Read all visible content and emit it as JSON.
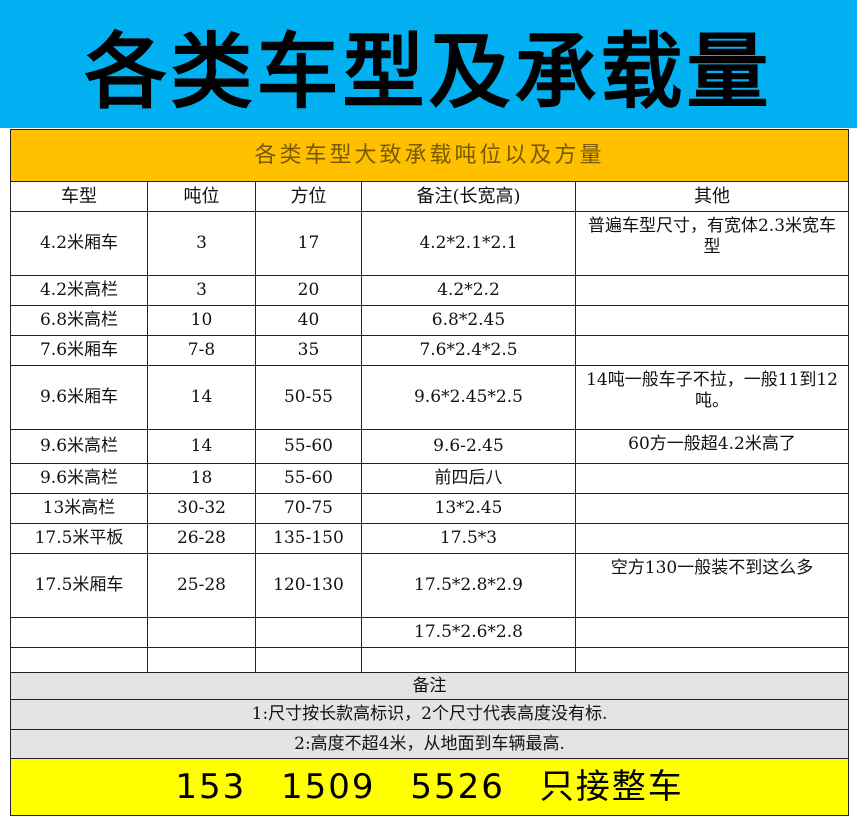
{
  "title": "各类车型及承载量",
  "subtitle": "各类车型大致承载吨位以及方量",
  "columns": [
    "车型",
    "吨位",
    "方位",
    "备注(长宽高)",
    "其他"
  ],
  "rows": [
    [
      "4.2米厢车",
      "3",
      "17",
      "4.2*2.1*2.1",
      "普遍车型尺寸，有宽体2.3米宽车型"
    ],
    [
      "4.2米高栏",
      "3",
      "20",
      "4.2*2.2",
      ""
    ],
    [
      "6.8米高栏",
      "10",
      "40",
      "6.8*2.45",
      ""
    ],
    [
      "7.6米厢车",
      "7-8",
      "35",
      "7.6*2.4*2.5",
      ""
    ],
    [
      "9.6米厢车",
      "14",
      "50-55",
      "9.6*2.45*2.5",
      "14吨一般车子不拉，一般11到12吨。"
    ],
    [
      "9.6米高栏",
      "14",
      "55-60",
      "9.6-2.45",
      "60方一般超4.2米高了"
    ],
    [
      "9.6米高栏",
      "18",
      "55-60",
      "前四后八",
      ""
    ],
    [
      "13米高栏",
      "30-32",
      "70-75",
      "13*2.45",
      ""
    ],
    [
      "17.5米平板",
      "26-28",
      "135-150",
      "17.5*3",
      ""
    ],
    [
      "17.5米厢车",
      "25-28",
      "120-130",
      "17.5*2.8*2.9",
      "空方130一般装不到这么多"
    ],
    [
      "",
      "",
      "",
      "17.5*2.6*2.8",
      ""
    ],
    [
      "",
      "",
      "",
      "",
      ""
    ]
  ],
  "notes_title": "备注",
  "notes": [
    "1:尺寸按长款高标识，2个尺寸代表高度没有标.",
    "2:高度不超4米，从地面到车辆最高."
  ],
  "footer": "153 1509 5526 只接整车",
  "colors": {
    "banner": "#00b0f0",
    "subtitle_bg": "#ffc000",
    "notes_bg": "#e4e4e4",
    "footer_bg": "#ffff00"
  }
}
